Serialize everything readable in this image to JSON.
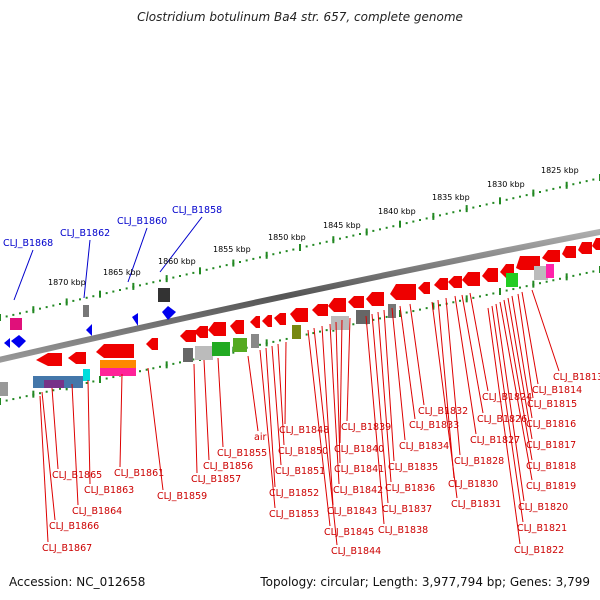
{
  "title": "Clostridium botulinum Ba4 str. 657, complete genome",
  "accession": "Accession: NC_012658",
  "summary": "Topology: circular; Length: 3,977,794 bp; Genes: 3,799",
  "scale_ticks": [
    "1825 kbp",
    "1830 kbp",
    "1835 kbp",
    "1840 kbp",
    "1845 kbp",
    "1850 kbp",
    "1855 kbp",
    "1860 kbp",
    "1865 kbp",
    "1870 kbp"
  ],
  "top_labels": [
    "CLJ_B1868",
    "CLJ_B1862",
    "CLJ_B1860",
    "CLJ_B1858"
  ],
  "bottom_labels": [
    "CLJ_B1813",
    "CLJ_B1814",
    "CLJ_B1815",
    "CLJ_B1816",
    "CLJ_B1817",
    "CLJ_B1818",
    "CLJ_B1819",
    "CLJ_B1820",
    "CLJ_B1821",
    "CLJ_B1822",
    "CLJ_B1824",
    "CLJ_B1826",
    "CLJ_B1827",
    "CLJ_B1828",
    "CLJ_B1830",
    "CLJ_B1831",
    "CLJ_B1832",
    "CLJ_B1833",
    "CLJ_B1834",
    "CLJ_B1835",
    "CLJ_B1836",
    "CLJ_B1837",
    "CLJ_B1838",
    "CLJ_B1839",
    "CLJ_B1840",
    "CLJ_B1841",
    "CLJ_B1842",
    "CLJ_B1843",
    "CLJ_B1844",
    "CLJ_B1845",
    "CLJ_B1848",
    "CLJ_B1850",
    "CLJ_B1851",
    "CLJ_B1852",
    "CLJ_B1853",
    "air",
    "CLJ_B1855",
    "CLJ_B1856",
    "CLJ_B1857",
    "CLJ_B1859",
    "CLJ_B1861",
    "CLJ_B1863",
    "CLJ_B1864",
    "CLJ_B1865",
    "CLJ_B1866",
    "CLJ_B1867"
  ],
  "colors": {
    "forward": "#ff0000",
    "reverse": "#0000ff",
    "backbone": "#808080",
    "label_red": "#cc0000",
    "label_blue": "#0000cc",
    "scale_dot": "#228822"
  }
}
